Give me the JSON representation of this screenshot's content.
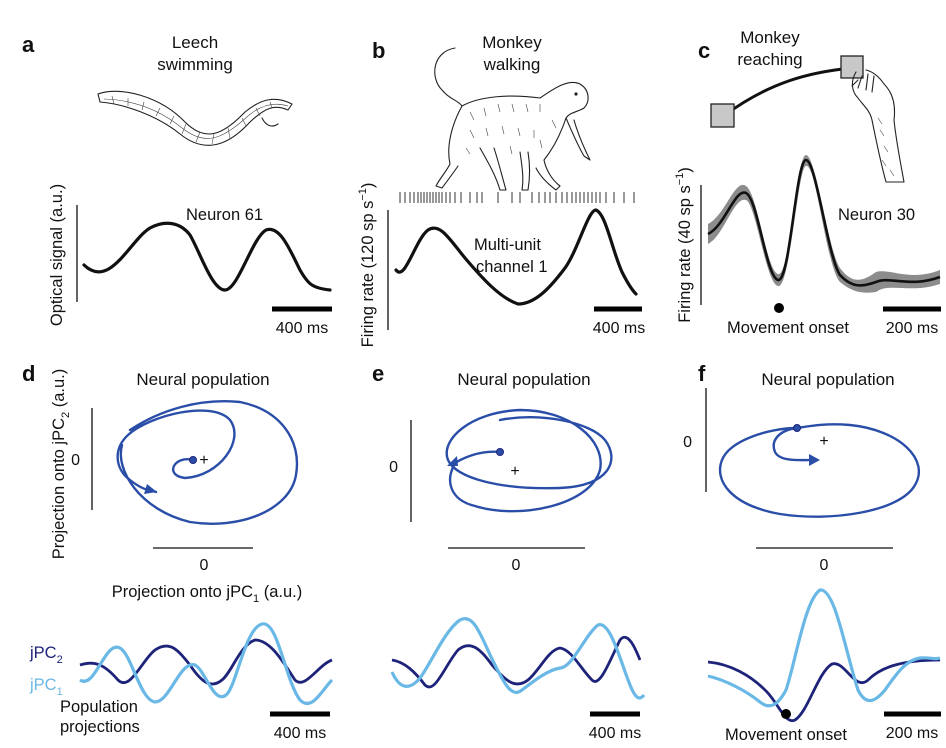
{
  "panel_labels": [
    "a",
    "b",
    "c",
    "d",
    "e",
    "f"
  ],
  "panel_a": {
    "title_line1": "Leech",
    "title_line2": "swimming",
    "ylabel": "Optical signal (a.u.)",
    "trace_label": "Neuron 61",
    "scale_bar": "400 ms"
  },
  "panel_b": {
    "title_line1": "Monkey",
    "title_line2": "walking",
    "ylabel_prefix": "Firing rate (120 sp s",
    "ylabel_sup": "−1",
    "ylabel_suffix": ")",
    "trace_label_line1": "Multi-unit",
    "trace_label_line2": "channel 1",
    "scale_bar": "400 ms"
  },
  "panel_c": {
    "title_line1": "Monkey",
    "title_line2": "reaching",
    "ylabel_prefix": "Firing rate (40 sp s",
    "ylabel_sup": "−1",
    "ylabel_suffix": ")",
    "trace_label": "Neuron 30",
    "event_label": "Movement onset",
    "scale_bar": "200 ms"
  },
  "panel_d": {
    "title": "Neural population",
    "ylabel_prefix": "Projection onto jPC",
    "ylabel_sub": "2",
    "ylabel_suffix": " (a.u.)",
    "xlabel_prefix": "Projection onto jPC",
    "xlabel_sub": "1",
    "xlabel_suffix": " (a.u.)",
    "x_tick": "0",
    "y_tick": "0",
    "legend_dark_prefix": "jPC",
    "legend_dark_sub": "2",
    "legend_light_prefix": "jPC",
    "legend_light_sub": "1",
    "caption_line1": "Population",
    "caption_line2": "projections",
    "scale_bar": "400 ms"
  },
  "panel_e": {
    "title": "Neural population",
    "x_tick": "0",
    "y_tick": "0",
    "scale_bar": "400 ms"
  },
  "panel_f": {
    "title": "Neural population",
    "x_tick": "0",
    "y_tick": "0",
    "event_label": "Movement onset",
    "scale_bar": "200 ms"
  },
  "colors": {
    "trace": "#111111",
    "trajectory": "#2a4ea8",
    "jpc2": "#1e237a",
    "jpc1": "#6ab8e6",
    "shading": "#8c8c8c"
  },
  "icons": [
    "leech-drawing-icon",
    "monkey-walking-drawing-icon",
    "hand-reaching-drawing-icon"
  ]
}
